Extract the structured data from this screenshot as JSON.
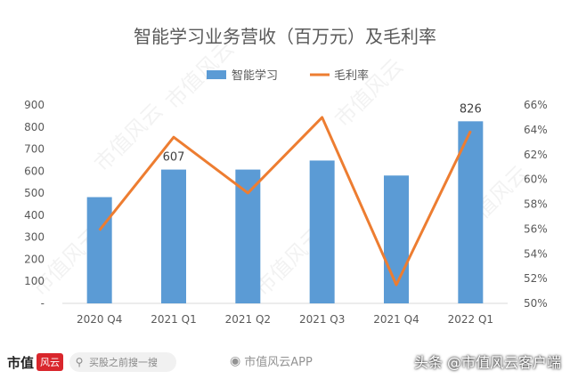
{
  "chart_data": {
    "type": "bar+line",
    "title": "智能学习业务营收（百万元）及毛利率",
    "categories": [
      "2020 Q4",
      "2021 Q1",
      "2021 Q2",
      "2021 Q3",
      "2021 Q4",
      "2022 Q1"
    ],
    "series": [
      {
        "name": "智能学习",
        "type": "bar",
        "axis": "left",
        "color": "#5b9bd5",
        "values": [
          482,
          607,
          607,
          648,
          580,
          826
        ]
      },
      {
        "name": "毛利率",
        "type": "line",
        "axis": "right",
        "color": "#ed7d31",
        "values": [
          55.9,
          63.4,
          58.9,
          65.0,
          51.5,
          63.9
        ]
      }
    ],
    "data_labels": [
      {
        "category": "2021 Q1",
        "text": "607"
      },
      {
        "category": "2022 Q1",
        "text": "826"
      }
    ],
    "y_left": {
      "ylim": [
        0,
        900
      ],
      "ticks": [
        {
          "v": 0,
          "label": "-"
        },
        {
          "v": 100,
          "label": "100"
        },
        {
          "v": 200,
          "label": "200"
        },
        {
          "v": 300,
          "label": "300"
        },
        {
          "v": 400,
          "label": "400"
        },
        {
          "v": 500,
          "label": "500"
        },
        {
          "v": 600,
          "label": "600"
        },
        {
          "v": 700,
          "label": "700"
        },
        {
          "v": 800,
          "label": "800"
        },
        {
          "v": 900,
          "label": "900"
        }
      ]
    },
    "y_right": {
      "ylim": [
        50,
        66
      ],
      "ticks": [
        {
          "v": 50,
          "label": "50%"
        },
        {
          "v": 52,
          "label": "52%"
        },
        {
          "v": 54,
          "label": "54%"
        },
        {
          "v": 56,
          "label": "56%"
        },
        {
          "v": 58,
          "label": "58%"
        },
        {
          "v": 60,
          "label": "60%"
        },
        {
          "v": 62,
          "label": "62%"
        },
        {
          "v": 64,
          "label": "64%"
        },
        {
          "v": 66,
          "label": "66%"
        }
      ]
    },
    "grid": false,
    "legend": "top"
  },
  "watermark": "市值风云",
  "footer": {
    "brand": "市值",
    "brand_seal": "风云",
    "search_text": "买股之前搜一搜",
    "weibo_text": "市值风云APP",
    "toutiao_text": "头条 @市值风云客户端"
  },
  "icons": {
    "search": "search-icon",
    "weibo": "weibo-icon"
  }
}
